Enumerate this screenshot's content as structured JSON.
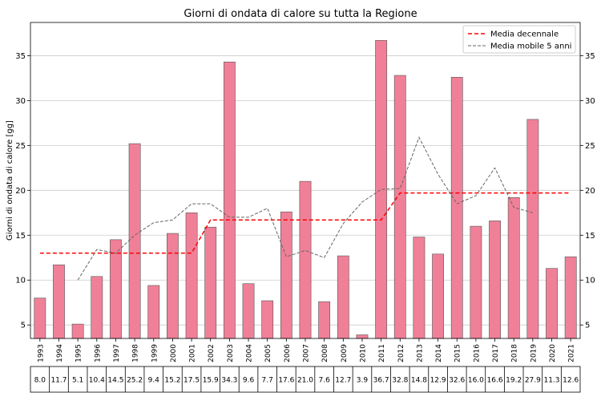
{
  "chart_data": {
    "type": "bar",
    "title": "Giorni di ondata di calore su tutta la Regione",
    "xlabel": "",
    "ylabel": "Giorni di ondata di calore [gg]",
    "ylim": [
      3.5,
      38.7
    ],
    "yticks": [
      5,
      10,
      15,
      20,
      25,
      30,
      35
    ],
    "grid": true,
    "right_axis_ticks": true,
    "legend_position": "top-right",
    "categories": [
      "1993",
      "1994",
      "1995",
      "1996",
      "1997",
      "1998",
      "1999",
      "2000",
      "2001",
      "2002",
      "2003",
      "2004",
      "2005",
      "2006",
      "2007",
      "2008",
      "2009",
      "2010",
      "2011",
      "2012",
      "2013",
      "2014",
      "2015",
      "2016",
      "2017",
      "2018",
      "2019",
      "2020",
      "2021"
    ],
    "values": [
      8.0,
      11.7,
      5.1,
      10.4,
      14.5,
      25.2,
      9.4,
      15.2,
      17.5,
      15.9,
      34.3,
      9.6,
      7.7,
      17.6,
      21.0,
      7.6,
      12.7,
      3.9,
      36.7,
      32.8,
      14.8,
      12.9,
      32.6,
      16.0,
      16.6,
      19.2,
      27.9,
      11.3,
      12.6
    ],
    "value_labels": [
      "8.0",
      "11.7",
      "5.1",
      "10.4",
      "14.5",
      "25.2",
      "9.4",
      "15.2",
      "17.5",
      "15.9",
      "34.3",
      "9.6",
      "7.7",
      "17.6",
      "21.0",
      "7.6",
      "12.7",
      "3.9",
      "36.7",
      "32.8",
      "14.8",
      "12.9",
      "32.6",
      "16.0",
      "16.6",
      "19.2",
      "27.9",
      "11.3",
      "12.6"
    ],
    "bar_color": "#f08098",
    "bar_edge_color": "#555555",
    "lines": [
      {
        "name": "Media decennale",
        "color": "#ff0000",
        "style": "dashed",
        "values": [
          13.0,
          13.0,
          13.0,
          13.0,
          13.0,
          13.0,
          13.0,
          13.0,
          13.0,
          16.7,
          16.7,
          16.7,
          16.7,
          16.7,
          16.7,
          16.7,
          16.7,
          16.7,
          16.7,
          19.7,
          19.7,
          19.7,
          19.7,
          19.7,
          19.7,
          19.7,
          19.7,
          19.7,
          19.7
        ]
      },
      {
        "name": "Media mobile 5 anni",
        "color": "#666666",
        "style": "dashed",
        "values": [
          null,
          null,
          10.0,
          13.4,
          13.0,
          15.0,
          16.4,
          16.7,
          18.5,
          18.5,
          17.0,
          17.0,
          18.0,
          12.6,
          13.3,
          12.5,
          16.3,
          18.7,
          20.1,
          20.2,
          25.9,
          21.8,
          18.5,
          19.4,
          22.5,
          18.1,
          17.5,
          null,
          null
        ]
      }
    ]
  }
}
